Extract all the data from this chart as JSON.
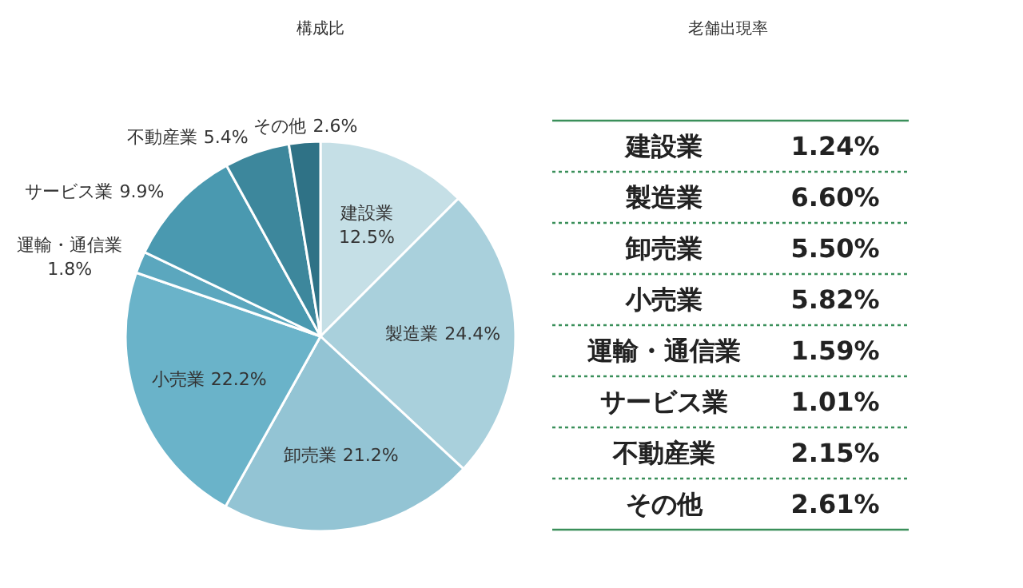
{
  "chart_data": [
    {
      "type": "pie",
      "title": "構成比",
      "categories": [
        "建設業",
        "製造業",
        "卸売業",
        "小売業",
        "運輸・通信業",
        "サービス業",
        "不動産業",
        "その他"
      ],
      "values": [
        12.5,
        24.4,
        21.2,
        22.2,
        1.8,
        9.9,
        5.4,
        2.6
      ],
      "colors": [
        "#c5dfe6",
        "#a9d0dc",
        "#93c4d4",
        "#6ab3c9",
        "#5ba7be",
        "#4a99b0",
        "#3d879c",
        "#2f7286"
      ],
      "value_labels": [
        "12.5%",
        "24.4%",
        "21.2%",
        "22.2%",
        "1.8%",
        "9.9%",
        "5.4%",
        "2.6%"
      ]
    },
    {
      "type": "other",
      "title": "老舗出現率",
      "categories": [
        "建設業",
        "製造業",
        "卸売業",
        "小売業",
        "運輸・通信業",
        "サービス業",
        "不動産業",
        "その他"
      ],
      "values": [
        1.24,
        6.6,
        5.5,
        5.82,
        1.59,
        1.01,
        2.15,
        2.61
      ],
      "value_labels": [
        "1.24%",
        "6.60%",
        "5.50%",
        "5.82%",
        "1.59%",
        "1.01%",
        "2.15%",
        "2.61%"
      ]
    }
  ]
}
